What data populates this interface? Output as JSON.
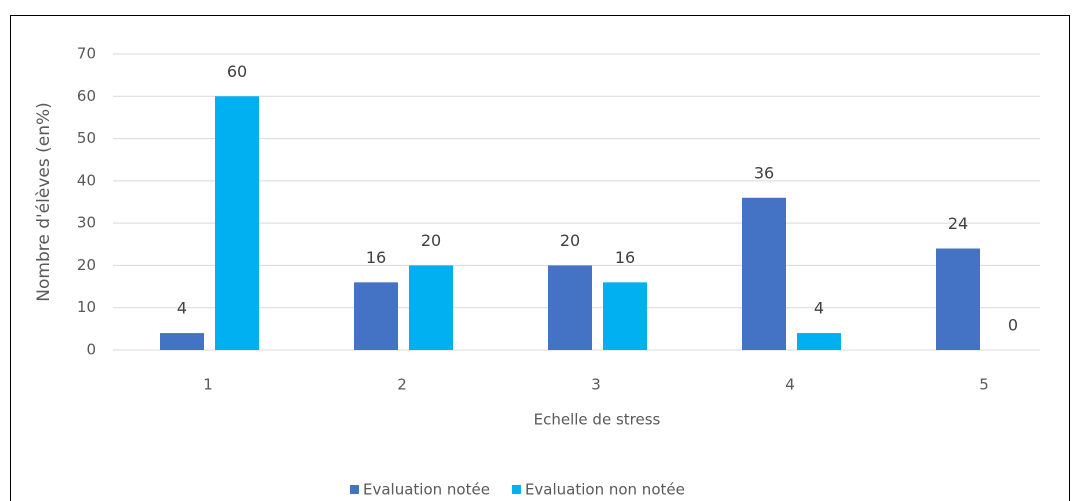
{
  "chart_data": {
    "type": "bar",
    "x_label": "Echelle de stress",
    "y_label": "Nombre d'élèves (en%)",
    "categories": [
      "1",
      "2",
      "3",
      "4",
      "5"
    ],
    "series": [
      {
        "name": "Evaluation notée",
        "color": "#4472c4",
        "values": [
          4,
          16,
          20,
          36,
          24
        ]
      },
      {
        "name": "Evaluation non notée",
        "color": "#00b0f0",
        "values": [
          60,
          20,
          16,
          4,
          0
        ]
      }
    ],
    "ylim": [
      0,
      70
    ],
    "yticks": [
      0,
      10,
      20,
      30,
      40,
      50,
      60,
      70
    ],
    "grid": true,
    "legend": "bottom"
  }
}
